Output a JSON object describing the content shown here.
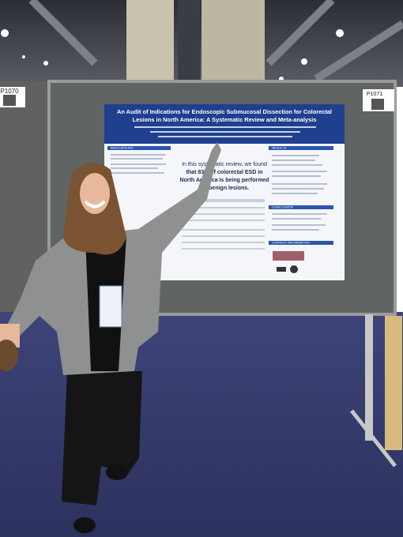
{
  "booths": {
    "left": "P1070",
    "right": "P1071"
  },
  "poster": {
    "title_lines": [
      "An Audit of Indications for Endoscopic Submucosal Dissection for Colorectal",
      "Lesions in North America: A Systematic Review and Meta-analysis"
    ],
    "key_finding_lines": [
      "In this systematic review, we found",
      "that 83% of colorectal ESD in",
      "North America is being performed",
      "for benign lesions."
    ],
    "sections": [
      "BACKGROUND",
      "RESULTS",
      "CONCLUSION",
      "CONTACT INFORMATION"
    ]
  }
}
